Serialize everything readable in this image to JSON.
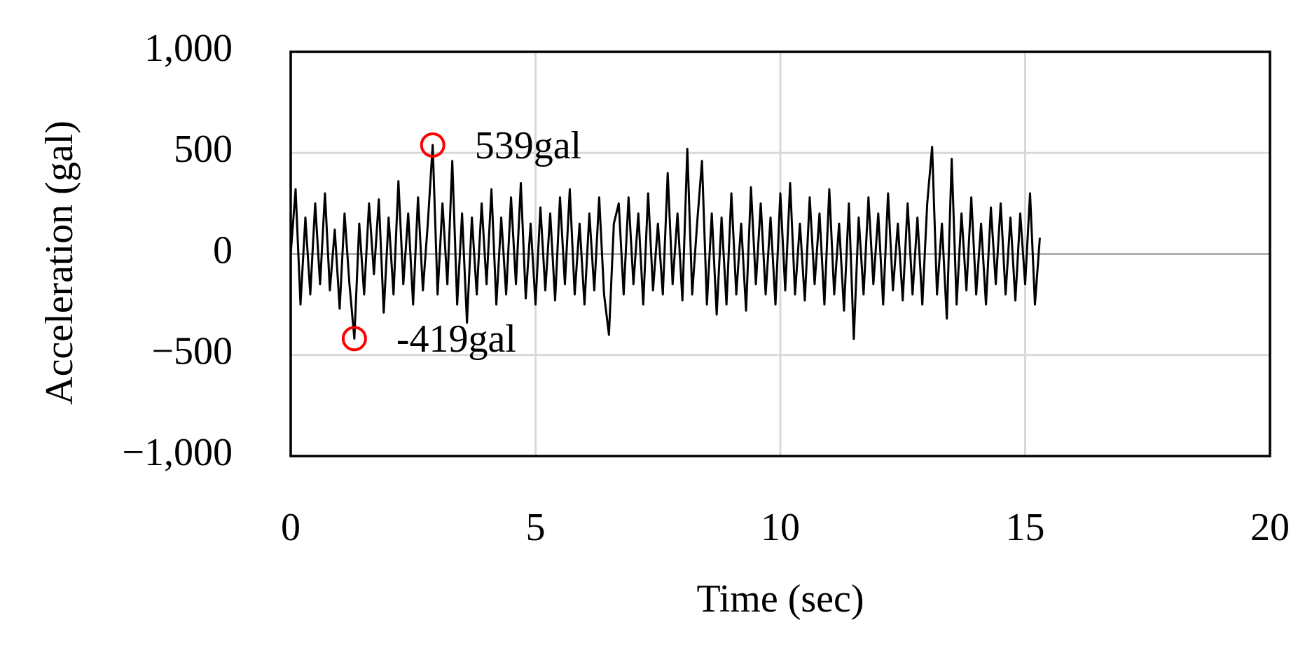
{
  "chart_data": {
    "type": "line",
    "x_label": "Time (sec)",
    "y_label": "Acceleration (gal)",
    "xlim": [
      0,
      20
    ],
    "xticks": [
      0,
      5,
      10,
      15,
      20
    ],
    "ylim": [
      -1000,
      1000
    ],
    "yticks": [
      {
        "value": -1000,
        "label": "−1,000"
      },
      {
        "value": -500,
        "label": "−500"
      },
      0,
      500,
      {
        "value": 1000,
        "label": "1,000"
      }
    ],
    "grid": true,
    "x": [
      0,
      0.1,
      0.2,
      0.3,
      0.4,
      0.5,
      0.6,
      0.7,
      0.8,
      0.9,
      1,
      1.1,
      1.2,
      1.3,
      1.4,
      1.5,
      1.6,
      1.7,
      1.8,
      1.9,
      2,
      2.1,
      2.2,
      2.3,
      2.4,
      2.5,
      2.6,
      2.7,
      2.8,
      2.9,
      3,
      3.1,
      3.2,
      3.3,
      3.4,
      3.5,
      3.6,
      3.7,
      3.8,
      3.9,
      4,
      4.1,
      4.2,
      4.3,
      4.4,
      4.5,
      4.6,
      4.7,
      4.8,
      4.9,
      5,
      5.1,
      5.2,
      5.3,
      5.4,
      5.5,
      5.6,
      5.7,
      5.8,
      5.9,
      6,
      6.1,
      6.2,
      6.3,
      6.4,
      6.5,
      6.6,
      6.7,
      6.8,
      6.9,
      7,
      7.1,
      7.2,
      7.3,
      7.4,
      7.5,
      7.6,
      7.7,
      7.8,
      7.9,
      8,
      8.1,
      8.2,
      8.3,
      8.4,
      8.5,
      8.6,
      8.7,
      8.8,
      8.9,
      9,
      9.1,
      9.2,
      9.3,
      9.4,
      9.5,
      9.6,
      9.7,
      9.8,
      9.9,
      10,
      10.1,
      10.2,
      10.3,
      10.4,
      10.5,
      10.6,
      10.7,
      10.8,
      10.9,
      11,
      11.1,
      11.2,
      11.3,
      11.4,
      11.5,
      11.6,
      11.7,
      11.8,
      11.9,
      12,
      12.1,
      12.2,
      12.3,
      12.4,
      12.5,
      12.6,
      12.7,
      12.8,
      12.9,
      13,
      13.1,
      13.2,
      13.3,
      13.4,
      13.5,
      13.6,
      13.7,
      13.8,
      13.9,
      14,
      14.1,
      14.2,
      14.3,
      14.4,
      14.5,
      14.6,
      14.7,
      14.8,
      14.9,
      15,
      15.1,
      15.2,
      15.3
    ],
    "series": [
      {
        "color": "#000000",
        "values": [
          0,
          320,
          -250,
          180,
          -200,
          250,
          -150,
          300,
          -180,
          120,
          -270,
          200,
          -150,
          -419,
          150,
          -200,
          250,
          -100,
          270,
          -290,
          180,
          -200,
          360,
          -150,
          200,
          -250,
          280,
          -180,
          150,
          539,
          -200,
          250,
          -150,
          460,
          -250,
          200,
          -340,
          180,
          -200,
          250,
          -150,
          320,
          -250,
          180,
          -200,
          280,
          -150,
          350,
          -220,
          150,
          -250,
          230,
          -180,
          200,
          -230,
          280,
          -150,
          320,
          -200,
          150,
          -250,
          200,
          -180,
          280,
          -200,
          -400,
          150,
          250,
          -200,
          280,
          -150,
          200,
          -250,
          300,
          -180,
          150,
          -200,
          400,
          -150,
          200,
          -230,
          520,
          -200,
          150,
          460,
          -250,
          200,
          -300,
          180,
          -250,
          300,
          -200,
          150,
          -280,
          330,
          -150,
          250,
          -200,
          180,
          -250,
          300,
          -180,
          350,
          -200,
          150,
          -230,
          280,
          -150,
          200,
          -250,
          320,
          -200,
          150,
          -280,
          250,
          -420,
          180,
          -200,
          280,
          -150,
          200,
          -250,
          300,
          -180,
          150,
          -230,
          250,
          -200,
          180,
          -250,
          250,
          530,
          -200,
          150,
          -320,
          470,
          -250,
          200,
          -180,
          280,
          -200,
          150,
          -250,
          230,
          -150,
          250,
          -200,
          180,
          -230,
          200,
          -150,
          300,
          -250,
          80
        ]
      }
    ],
    "annotations": [
      {
        "text": "539gal",
        "x": 2.9,
        "y": 539,
        "color": "#ff0000"
      },
      {
        "text": "-419gal",
        "x": 1.3,
        "y": -419,
        "color": "#ff0000"
      }
    ]
  }
}
